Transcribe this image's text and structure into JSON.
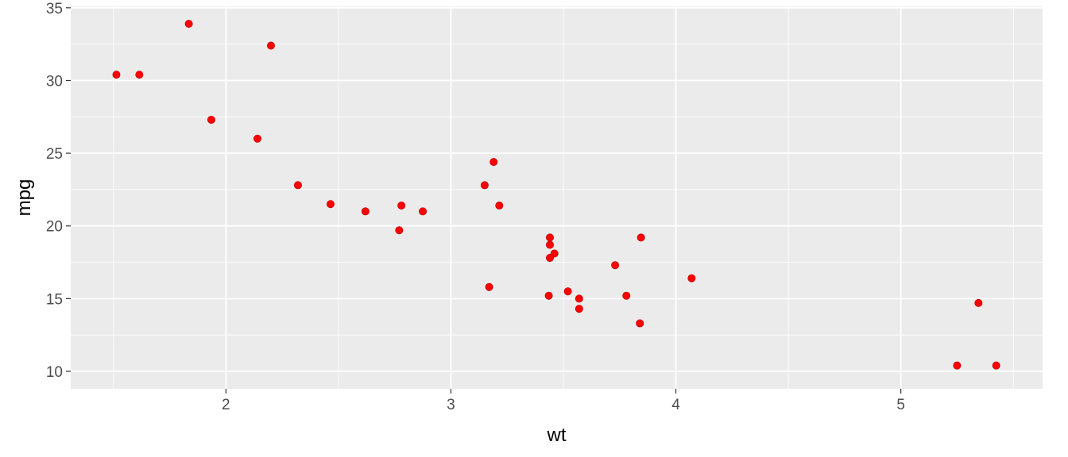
{
  "chart_data": {
    "type": "scatter",
    "title": "",
    "xlabel": "wt",
    "ylabel": "mpg",
    "xlim": [
      1.31,
      5.63
    ],
    "ylim": [
      8.8,
      35.1
    ],
    "x_ticks": [
      2,
      3,
      4,
      5
    ],
    "y_ticks": [
      10,
      15,
      20,
      25,
      30,
      35
    ],
    "x_tick_labels": [
      "2",
      "3",
      "4",
      "5"
    ],
    "y_tick_labels": [
      "10",
      "15",
      "20",
      "25",
      "30",
      "35"
    ],
    "grid": true,
    "legend": "none",
    "colors": {
      "panel": "#EBEBEB",
      "grid": "#FFFFFF",
      "point": "#FF0000",
      "point_stroke": "#C40000"
    },
    "series": [
      {
        "points": [
          [
            2.62,
            21.0
          ],
          [
            2.875,
            21.0
          ],
          [
            2.32,
            22.8
          ],
          [
            3.215,
            21.4
          ],
          [
            3.44,
            18.7
          ],
          [
            3.46,
            18.1
          ],
          [
            3.57,
            14.3
          ],
          [
            3.19,
            24.4
          ],
          [
            3.15,
            22.8
          ],
          [
            3.44,
            19.2
          ],
          [
            3.44,
            17.8
          ],
          [
            4.07,
            16.4
          ],
          [
            3.73,
            17.3
          ],
          [
            3.78,
            15.2
          ],
          [
            5.25,
            10.4
          ],
          [
            5.424,
            10.4
          ],
          [
            5.345,
            14.7
          ],
          [
            2.2,
            32.4
          ],
          [
            1.615,
            30.4
          ],
          [
            1.835,
            33.9
          ],
          [
            2.465,
            21.5
          ],
          [
            3.52,
            15.5
          ],
          [
            3.435,
            15.2
          ],
          [
            3.84,
            13.3
          ],
          [
            3.845,
            19.2
          ],
          [
            1.935,
            27.3
          ],
          [
            2.14,
            26.0
          ],
          [
            1.513,
            30.4
          ],
          [
            3.17,
            15.8
          ],
          [
            2.77,
            19.7
          ],
          [
            3.57,
            15.0
          ],
          [
            2.78,
            21.4
          ]
        ]
      }
    ]
  }
}
